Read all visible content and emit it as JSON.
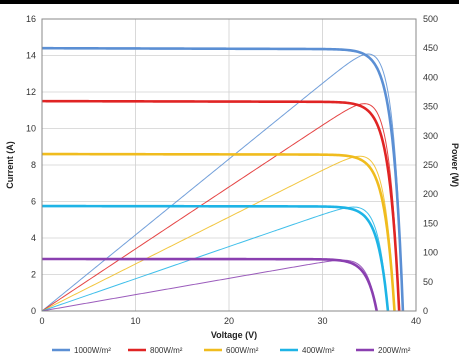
{
  "chart_data": {
    "type": "line",
    "xlabel": "Voltage (V)",
    "ylabel_left": "Current (A)",
    "ylabel_right": "Power (W)",
    "xlim": [
      0,
      40
    ],
    "ylim_left": [
      0,
      16
    ],
    "ylim_right": [
      0,
      500
    ],
    "x_ticks": [
      "0",
      "10",
      "20",
      "30",
      "40"
    ],
    "y_left_ticks": [
      "0",
      "2",
      "4",
      "6",
      "8",
      "10",
      "12",
      "14",
      "16"
    ],
    "y_right_ticks": [
      "0",
      "50",
      "100",
      "150",
      "200",
      "250",
      "300",
      "350",
      "400",
      "450",
      "500"
    ],
    "grid": true,
    "legend_position": "bottom",
    "series": [
      {
        "name": "1000W/m²",
        "color": "#5b8fd4",
        "isc": 14.4,
        "voc": 38.6,
        "vmp": 32.5,
        "pmax": 440
      },
      {
        "name": "800W/m²",
        "color": "#e02424",
        "isc": 11.5,
        "voc": 38.2,
        "vmp": 32.2,
        "pmax": 355
      },
      {
        "name": "600W/m²",
        "color": "#f0bc1e",
        "isc": 8.6,
        "voc": 37.7,
        "vmp": 31.8,
        "pmax": 265
      },
      {
        "name": "400W/m²",
        "color": "#1eb4e6",
        "isc": 5.75,
        "voc": 37.0,
        "vmp": 31.3,
        "pmax": 178
      },
      {
        "name": "200W/m²",
        "color": "#8a3fb0",
        "isc": 2.85,
        "voc": 35.8,
        "vmp": 30.5,
        "pmax": 87
      }
    ]
  }
}
